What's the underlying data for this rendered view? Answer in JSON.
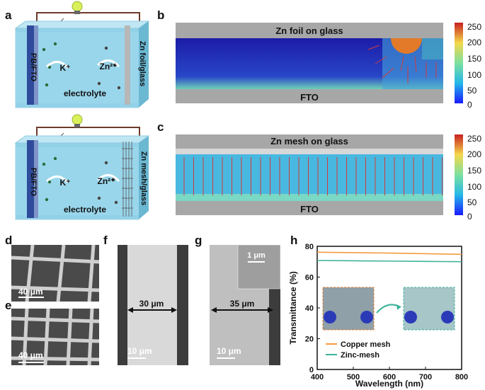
{
  "panels": {
    "a": {
      "letter": "a",
      "left_label": "PB/FTO",
      "right_label": "Zn foil/glass",
      "ion1": "K⁺",
      "ion2": "Zn²⁺",
      "electrolyte": "electrolyte"
    },
    "a2": {
      "left_label": "PB/FTO",
      "right_label": "Zn mesh/glass",
      "ion1": "K⁺",
      "ion2": "Zn²⁺",
      "electrolyte": "electrolyte"
    },
    "b": {
      "letter": "b",
      "top_label": "Zn foil on glass",
      "bottom_label": "FTO",
      "colorbar_ticks": [
        "250",
        "200",
        "150",
        "100",
        "50",
        "0"
      ]
    },
    "c": {
      "letter": "c",
      "top_label": "Zn mesh on glass",
      "bottom_label": "FTO",
      "colorbar_ticks": [
        "250",
        "200",
        "150",
        "100",
        "50",
        "0"
      ]
    },
    "d": {
      "letter": "d",
      "scale": "40 μm"
    },
    "e": {
      "letter": "e",
      "scale": "40 μm"
    },
    "f": {
      "letter": "f",
      "width_label": "30 μm",
      "scale": "10 μm"
    },
    "g": {
      "letter": "g",
      "width_label": "35 μm",
      "scale": "10 μm",
      "inset_scale": "1 μm"
    },
    "h": {
      "letter": "h"
    }
  },
  "colors": {
    "copper": "#F39C43",
    "zinc": "#3DB39A",
    "cell_blue": "#7ecbe3"
  },
  "chart_data": {
    "type": "line",
    "xlabel": "Wavelength (nm)",
    "ylabel": "Transmittance (%)",
    "xlim": [
      400,
      800
    ],
    "ylim": [
      0,
      80
    ],
    "xticks": [
      "400",
      "500",
      "600",
      "700",
      "800"
    ],
    "yticks": [
      "0",
      "20",
      "40",
      "60",
      "80"
    ],
    "legend_position": "bottom-left",
    "series": [
      {
        "name": "Copper mesh",
        "x": [
          400,
          500,
          600,
          700,
          800
        ],
        "values": [
          76.2,
          75.9,
          75.6,
          75.2,
          74.8
        ]
      },
      {
        "name": "Zinc-mesh",
        "x": [
          400,
          500,
          600,
          700,
          800
        ],
        "values": [
          70.8,
          70.6,
          70.4,
          70.2,
          70.0
        ]
      }
    ]
  }
}
